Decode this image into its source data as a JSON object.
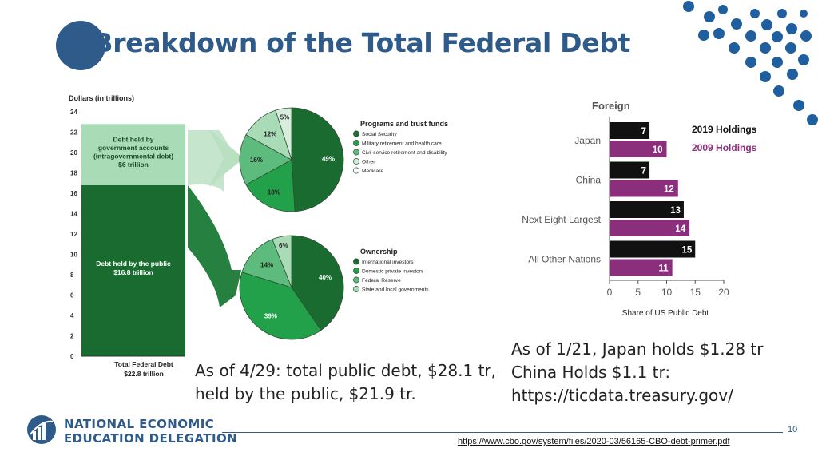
{
  "slide": {
    "title": "A Breakdown of the Total Federal Debt",
    "page_number": "10",
    "source_link": "https://www.cbo.gov/system/files/2020-03/56165-CBO-debt-primer.pdf",
    "note_left_line1": "As of 4/29: total public debt, $28.1 tr,",
    "note_left_line2": "held by the public, $21.9 tr.",
    "note_right_line1": "As of 1/21, Japan holds $1.28 tr",
    "note_right_line2": "China Holds $1.1 tr:",
    "note_right_line3": "https://ticdata.treasury.gov/",
    "logo_line1": "NATIONAL ECONOMIC",
    "logo_line2": "EDUCATION DELEGATION"
  },
  "colors": {
    "brand": "#2f5b8a",
    "dark_green": "#1a6b30",
    "mid_green": "#23a04a",
    "light_green": "#5dbb7d",
    "pale_green": "#a9dcb6",
    "very_pale_green": "#d8eedd",
    "black_bar": "#111111",
    "purple_bar": "#8b2f7d"
  },
  "chart_data": [
    {
      "type": "bar",
      "stacked": true,
      "title": "",
      "ylabel": "Dollars (in trillions)",
      "ylim": [
        0,
        24
      ],
      "yticks": [
        0,
        2,
        4,
        6,
        8,
        10,
        12,
        14,
        16,
        18,
        20,
        22,
        24
      ],
      "categories": [
        "Total Federal Debt $22.8 trillion"
      ],
      "bottom_label_line1": "Total Federal Debt",
      "bottom_label_line2": "$22.8 trillion",
      "series": [
        {
          "name": "Debt held by the public $16.8 trillion",
          "values": [
            16.8
          ],
          "label_line1": "Debt held by the public",
          "label_line2": "$16.8 trillion"
        },
        {
          "name": "Debt held by government accounts (intragovernmental debt) $6 trillion",
          "values": [
            6.0
          ],
          "label_line1": "Debt held by",
          "label_line2": "government accounts",
          "label_line3": "(intragovernmental debt)",
          "label_line4": "$6 trillion"
        }
      ]
    },
    {
      "type": "pie",
      "legend_title": "Programs and trust funds",
      "labels": [
        "Social Security",
        "Military retirement  and health care",
        "Civil service retirement and disability",
        "Other",
        "Medicare"
      ],
      "values": [
        49,
        18,
        16,
        12,
        5
      ],
      "value_labels": [
        "49%",
        "18%",
        "16%",
        "12%",
        "5%"
      ]
    },
    {
      "type": "pie",
      "legend_title": "Ownership",
      "labels": [
        "International investors",
        "Domestic private investors",
        "Federal Reserve",
        "State and local governments"
      ],
      "values": [
        40,
        39,
        14,
        6
      ],
      "value_labels": [
        "40%",
        "39%",
        "14%",
        "6%"
      ]
    },
    {
      "type": "bar",
      "orientation": "horizontal",
      "title": "Foreign",
      "xlabel": "Share of US Public Debt",
      "xlim": [
        0,
        20
      ],
      "xticks": [
        0,
        5,
        10,
        15,
        20
      ],
      "categories": [
        "Japan",
        "China",
        "Next Eight Largest",
        "All Other Nations"
      ],
      "series": [
        {
          "name": "2019 Holdings",
          "values": [
            7,
            7,
            13,
            15
          ],
          "value_labels": [
            "7",
            "7",
            "13",
            "15"
          ]
        },
        {
          "name": "2009 Holdings",
          "values": [
            10,
            12,
            14,
            11
          ],
          "value_labels": [
            "10",
            "12",
            "14",
            "11"
          ]
        }
      ]
    }
  ]
}
